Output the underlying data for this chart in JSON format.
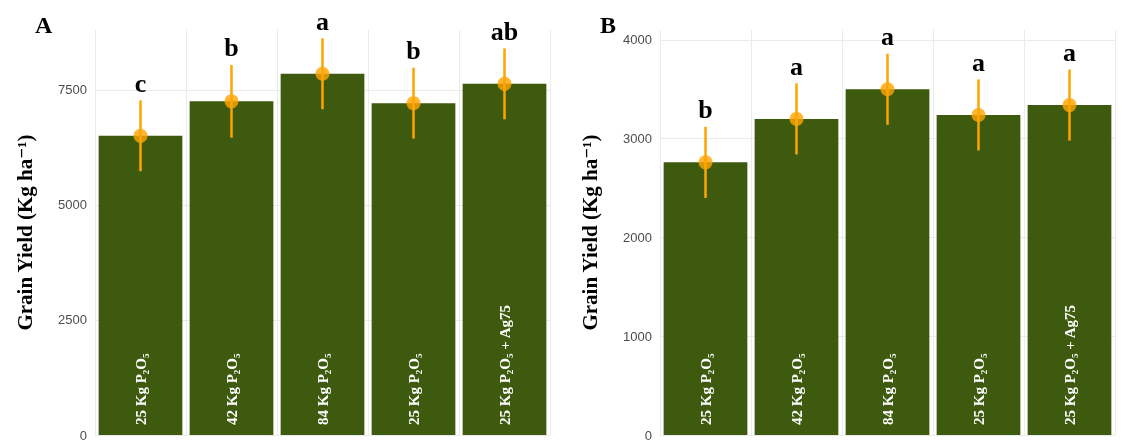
{
  "chart_data": [
    {
      "type": "bar",
      "title": "A",
      "ylabel": "Grain Yield (Kg ha⁻¹)",
      "categories": [
        "25 Kg P₂O₅",
        "42 Kg P₂O₅",
        "84 Kg P₂O₅",
        "25 Kg P₂O₅",
        "25 Kg P₂O₅ + Ag75"
      ],
      "series": [
        {
          "color": "#3d5a0e",
          "values": [
            6500,
            7250,
            7850,
            7210,
            7630
          ]
        },
        {
          "type": "scatter",
          "color": "#ffa500",
          "values": [
            6500,
            7250,
            7850,
            7210,
            7630
          ],
          "errors": [
            770,
            790,
            770,
            770,
            770
          ]
        }
      ],
      "ylim": [
        0,
        8800
      ],
      "yticks": [
        0,
        2500,
        5000,
        7500
      ],
      "grid": true,
      "marker": "circle",
      "annotations": [
        "c",
        "b",
        "a",
        "b",
        "ab"
      ]
    },
    {
      "type": "bar",
      "title": "B",
      "ylabel": "Grain Yield (Kg ha⁻¹)",
      "categories": [
        "25 Kg P₂O₅",
        "42 Kg P₂O₅",
        "84 Kg P₂O₅",
        "25 Kg P₂O₅",
        "25 Kg P₂O₅ + Ag75"
      ],
      "series": [
        {
          "color": "#3d5a0e",
          "values": [
            2760,
            3200,
            3500,
            3240,
            3340
          ]
        },
        {
          "type": "scatter",
          "color": "#ffa500",
          "values": [
            2760,
            3200,
            3500,
            3240,
            3340
          ],
          "errors": [
            360,
            360,
            360,
            360,
            360
          ]
        }
      ],
      "ylim": [
        0,
        4100
      ],
      "yticks": [
        0,
        1000,
        2000,
        3000,
        4000
      ],
      "grid": true,
      "marker": "circle",
      "annotations": [
        "b",
        "a",
        "a",
        "a",
        "a"
      ]
    }
  ]
}
